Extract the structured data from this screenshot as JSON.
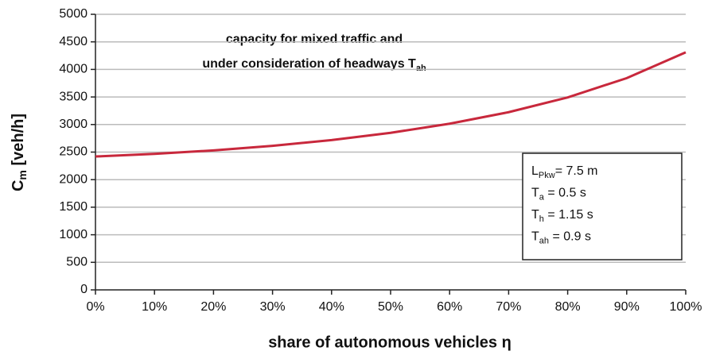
{
  "chart_data": {
    "type": "line",
    "annotation": [
      {
        "text": "capacity for mixed traffic and"
      },
      {
        "text": "under consideration of headways T",
        "sub": "ah"
      }
    ],
    "parameters": [
      {
        "main": "L",
        "sub": "Pkw",
        "rest": "= 7.5 m"
      },
      {
        "main": "T",
        "sub": "a",
        "rest": " = 0.5 s"
      },
      {
        "main": "T",
        "sub": "h",
        "rest": " = 1.15 s"
      },
      {
        "main": "T",
        "sub": "ah",
        "rest": " = 0.9 s"
      }
    ],
    "x_label": "share of autonomous vehicles η",
    "y_label": {
      "main": "C",
      "sub": "m",
      "rest": " [veh/h]"
    },
    "x": [
      0,
      10,
      20,
      30,
      40,
      50,
      60,
      70,
      80,
      90,
      100
    ],
    "series": [
      {
        "color": "#c8283c",
        "values": [
          2420,
          2467,
          2531,
          2614,
          2718,
          2850,
          3015,
          3224,
          3492,
          3842,
          4310
        ]
      }
    ],
    "xlim": [
      0,
      100
    ],
    "xticks": [
      {
        "value": 0,
        "label": "0%"
      },
      {
        "value": 10,
        "label": "10%"
      },
      {
        "value": 20,
        "label": "20%"
      },
      {
        "value": 30,
        "label": "30%"
      },
      {
        "value": 40,
        "label": "40%"
      },
      {
        "value": 50,
        "label": "50%"
      },
      {
        "value": 60,
        "label": "60%"
      },
      {
        "value": 70,
        "label": "70%"
      },
      {
        "value": 80,
        "label": "80%"
      },
      {
        "value": 90,
        "label": "90%"
      },
      {
        "value": 100,
        "label": "100%"
      }
    ],
    "ylim": [
      0,
      5000
    ],
    "yticks": [
      0,
      500,
      1000,
      1500,
      2000,
      2500,
      3000,
      3500,
      4000,
      4500,
      5000
    ],
    "grid": true
  }
}
